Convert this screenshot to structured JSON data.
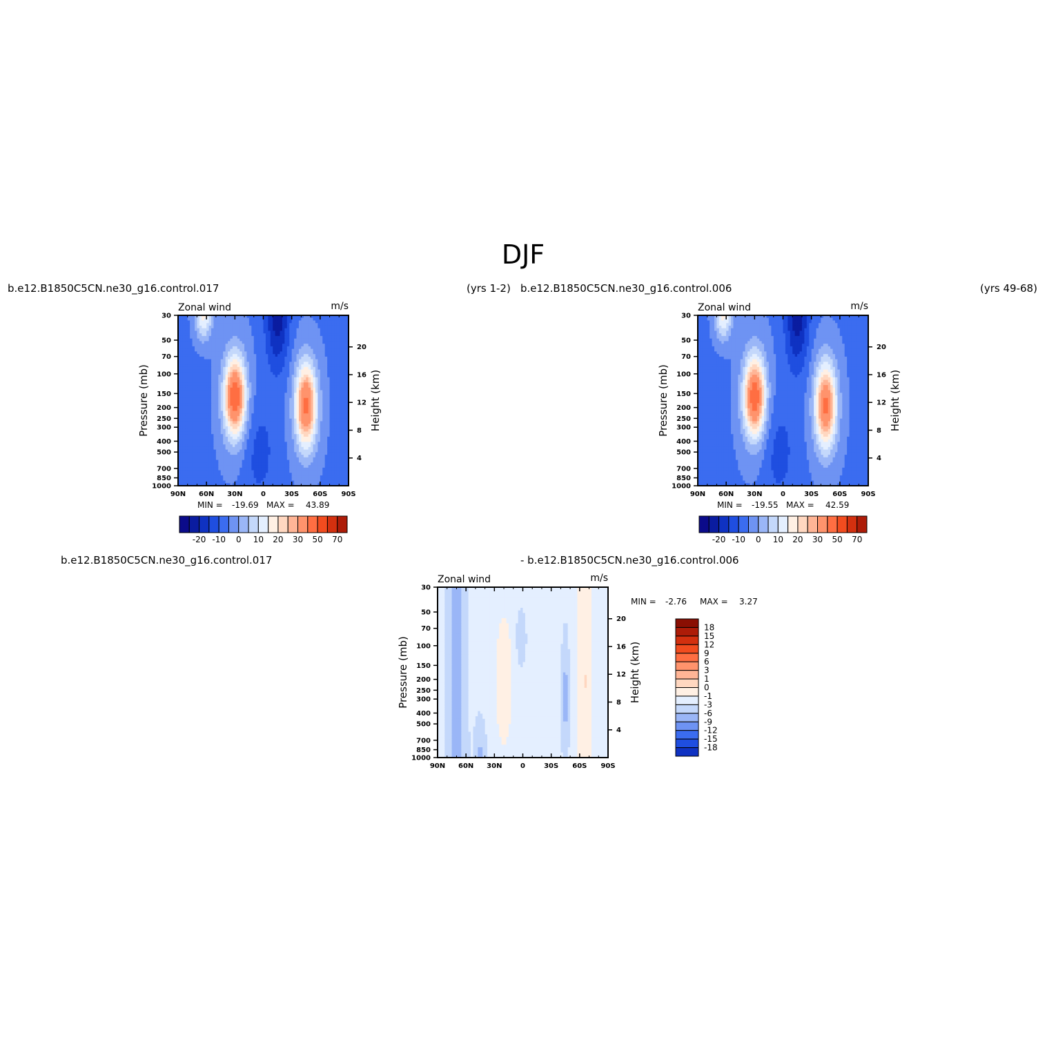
{
  "page_title": "DJF",
  "panel_headers": {
    "top_left_case": "b.e12.B1850C5CN.ne30_g16.control.017",
    "top_middle_years": "(yrs  1-2)",
    "top_right_case": "b.e12.B1850C5CN.ne30_g16.control.006",
    "top_right_years": "(yrs  49-68)",
    "bottom_case_a": "b.e12.B1850C5CN.ne30_g16.control.017",
    "bottom_case_b": "-  b.e12.B1850C5CN.ne30_g16.control.006"
  },
  "colors": {
    "neg": [
      "#0b0b8a",
      "#0a1ca0",
      "#0f32c2",
      "#1f4ee0",
      "#3b6cf0",
      "#6e93f3",
      "#9ab6f7",
      "#c4d8fb",
      "#e4efff"
    ],
    "pos": [
      "#fff0e4",
      "#ffd7c0",
      "#ffb596",
      "#ff936c",
      "#ff6e42",
      "#f24c1f",
      "#d3300f",
      "#ad1c08",
      "#8a0f03"
    ]
  },
  "chart_data": [
    {
      "type": "heatmap",
      "id": "panel1",
      "corner_left": "Zonal wind",
      "corner_right": "m/s",
      "ylabel": "Pressure (mb)",
      "ylabel_right": "Height (km)",
      "x": [
        "90N",
        "60N",
        "30N",
        "0",
        "30S",
        "60S",
        "90S"
      ],
      "xlim": [
        90,
        -90
      ],
      "y_pressure": [
        30,
        50,
        70,
        100,
        150,
        200,
        250,
        300,
        400,
        500,
        700,
        850,
        1000
      ],
      "y_height_km": [
        4,
        8,
        12,
        16,
        20
      ],
      "ylim": [
        1000,
        30
      ],
      "y_scale": "log",
      "min_label": "MIN =",
      "min_value": "-19.69",
      "max_label": "MAX =",
      "max_value": "43.89",
      "colorbar": {
        "orientation": "horizontal",
        "levels": [
          -25,
          -20,
          -15,
          -10,
          -5,
          0,
          5,
          10,
          15,
          20,
          25,
          30,
          40,
          50,
          60,
          70
        ],
        "tick_labels": [
          "-20",
          "-10",
          "0",
          "10",
          "20",
          "30",
          "50",
          "70"
        ]
      }
    },
    {
      "type": "heatmap",
      "id": "panel2",
      "corner_left": "Zonal wind",
      "corner_right": "m/s",
      "ylabel": "Pressure (mb)",
      "ylabel_right": "Height (km)",
      "x": [
        "90N",
        "60N",
        "30N",
        "0",
        "30S",
        "60S",
        "90S"
      ],
      "xlim": [
        90,
        -90
      ],
      "y_pressure": [
        30,
        50,
        70,
        100,
        150,
        200,
        250,
        300,
        400,
        500,
        700,
        850,
        1000
      ],
      "y_height_km": [
        4,
        8,
        12,
        16,
        20
      ],
      "ylim": [
        1000,
        30
      ],
      "y_scale": "log",
      "min_label": "MIN =",
      "min_value": "-19.55",
      "max_label": "MAX =",
      "max_value": "42.59",
      "colorbar": {
        "orientation": "horizontal",
        "levels": [
          -25,
          -20,
          -15,
          -10,
          -5,
          0,
          5,
          10,
          15,
          20,
          25,
          30,
          40,
          50,
          60,
          70
        ],
        "tick_labels": [
          "-20",
          "-10",
          "0",
          "10",
          "20",
          "30",
          "50",
          "70"
        ]
      }
    },
    {
      "type": "heatmap",
      "id": "panel3",
      "corner_left": "Zonal wind",
      "corner_right": "m/s",
      "ylabel": "Pressure (mb)",
      "ylabel_right": "Height (km)",
      "x": [
        "90N",
        "60N",
        "30N",
        "0",
        "30S",
        "60S",
        "90S"
      ],
      "xlim": [
        90,
        -90
      ],
      "y_pressure": [
        30,
        50,
        70,
        100,
        150,
        200,
        250,
        300,
        400,
        500,
        700,
        850,
        1000
      ],
      "y_height_km": [
        4,
        8,
        12,
        16,
        20
      ],
      "ylim": [
        1000,
        30
      ],
      "y_scale": "log",
      "min_label": "MIN =",
      "min_value": "-2.76",
      "max_label": "MAX =",
      "max_value": "3.27",
      "colorbar": {
        "orientation": "vertical",
        "levels": [
          -18,
          -15,
          -12,
          -9,
          -6,
          -3,
          -1,
          0,
          1,
          3,
          6,
          9,
          12,
          15,
          18
        ],
        "tick_labels": [
          "18",
          "15",
          "12",
          "9",
          "6",
          "3",
          "1",
          "0",
          "-1",
          "-3",
          "-6",
          "-9",
          "-12",
          "-15",
          "-18"
        ]
      }
    }
  ]
}
